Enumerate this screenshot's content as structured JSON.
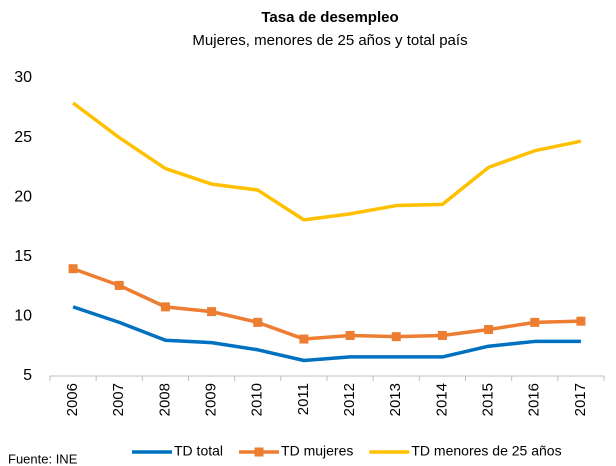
{
  "chart_data": {
    "type": "line",
    "title": "Tasa de desempleo",
    "subtitle": "Mujeres, menores de 25 años y total país",
    "categories": [
      "2006",
      "2007",
      "2008",
      "2009",
      "2010",
      "2011",
      "2012",
      "2013",
      "2014",
      "2015",
      "2016",
      "2017"
    ],
    "series": [
      {
        "name": "TD total",
        "color": "#0070c0",
        "marker": "none",
        "values": [
          10.8,
          9.5,
          8.0,
          7.8,
          7.2,
          6.3,
          6.6,
          6.6,
          6.6,
          7.5,
          7.9,
          7.9
        ]
      },
      {
        "name": "TD mujeres",
        "color": "#ed7d31",
        "marker": "square",
        "values": [
          14.0,
          12.6,
          10.8,
          10.4,
          9.5,
          8.1,
          8.4,
          8.3,
          8.4,
          8.9,
          9.5,
          9.6
        ]
      },
      {
        "name": "TD menores de 25 años",
        "color": "#ffc000",
        "marker": "none",
        "values": [
          27.9,
          25.0,
          22.4,
          21.1,
          20.6,
          18.1,
          18.6,
          19.3,
          19.4,
          22.5,
          23.9,
          24.7
        ]
      }
    ],
    "ylim": [
      5,
      30
    ],
    "yticks": [
      5,
      10,
      15,
      20,
      25,
      30
    ],
    "grid": false,
    "legend": "bottom",
    "source": "Fuente: INE"
  }
}
